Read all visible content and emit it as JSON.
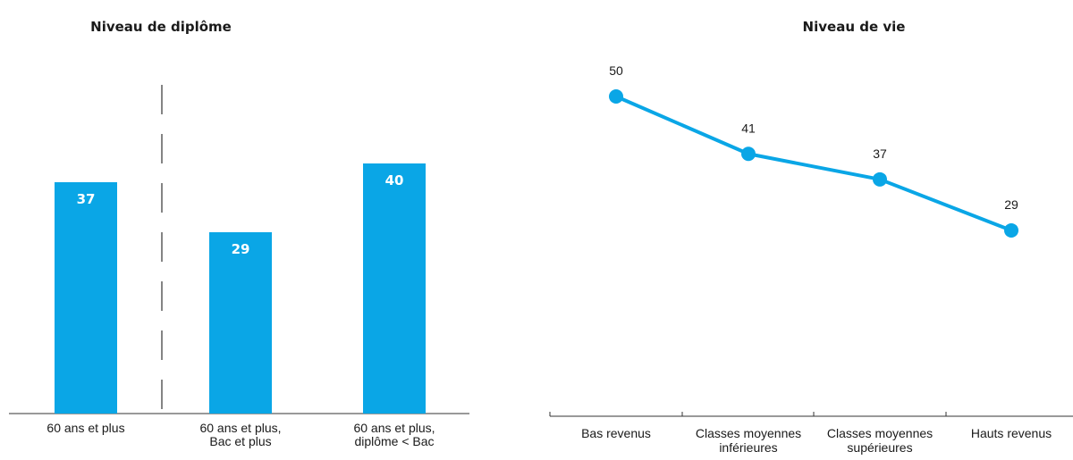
{
  "colors": {
    "accent": "#0aa6e6",
    "text": "#1a1a1a"
  },
  "chart_data": [
    {
      "type": "bar",
      "title": "Niveau de diplôme",
      "categories": [
        "60 ans et plus",
        "60 ans et plus, Bac et plus",
        "60 ans et plus, diplôme < Bac"
      ],
      "category_lines": [
        [
          "60 ans et plus"
        ],
        [
          "60 ans et plus,",
          "Bac et plus"
        ],
        [
          "60 ans et plus,",
          "diplôme < Bac"
        ]
      ],
      "values": [
        37,
        29,
        40
      ],
      "ylim": [
        0,
        60
      ],
      "grid": false,
      "data_labels": "inside-top"
    },
    {
      "type": "line",
      "title": "Niveau de vie",
      "categories": [
        "Bas revenus",
        "Classes moyennes inférieures",
        "Classes moyennes supérieures",
        "Hauts revenus"
      ],
      "category_lines": [
        [
          "Bas revenus"
        ],
        [
          "Classes moyennes",
          "inférieures"
        ],
        [
          "Classes moyennes",
          "supérieures"
        ],
        [
          "Hauts revenus"
        ]
      ],
      "values": [
        50,
        41,
        37,
        29
      ],
      "ylim": [
        0,
        60
      ],
      "grid": false,
      "data_labels": "above"
    }
  ]
}
